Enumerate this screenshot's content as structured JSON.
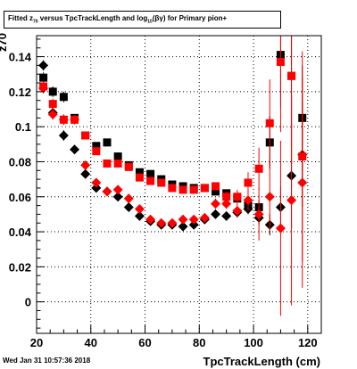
{
  "title": {
    "pre": "Fitted  z",
    "sub1": "70",
    "mid": " versus TpcTrackLength and log",
    "sub2": "10",
    "post": "(βγ) for Primary pion+"
  },
  "timestamp": "Wed Jan 31 10:57:36 2018",
  "chart_data": {
    "type": "scatter",
    "title": "Fitted z70 versus TpcTrackLength and log10(βγ) for Primary pion+",
    "xlabel": "TpcTrackLength (cm)",
    "ylabel": "z70",
    "xlim": [
      20,
      125
    ],
    "ylim": [
      -0.018,
      0.152
    ],
    "xticks": [
      20,
      40,
      60,
      80,
      100,
      120
    ],
    "yticks": [
      0,
      0.02,
      0.04,
      0.06,
      0.08,
      0.1,
      0.12,
      0.14
    ],
    "ytick_labels": [
      "0",
      "0.02",
      "0.04",
      "0.06",
      "0.08",
      "0.1",
      "0.12",
      "0.14"
    ],
    "grid": true,
    "colors": {
      "black": "#000000",
      "red": "#ff0000"
    },
    "series": [
      {
        "marker": "square",
        "color": "#000000",
        "x": [
          22.5,
          26,
          30,
          34,
          38,
          42,
          46,
          50,
          54,
          58,
          62,
          66,
          70,
          74,
          78,
          82,
          86,
          90,
          94,
          98,
          102,
          106,
          110,
          114,
          118
        ],
        "y": [
          0.128,
          0.12,
          0.117,
          0.105,
          0.095,
          0.089,
          0.091,
          0.083,
          0.078,
          0.074,
          0.073,
          0.07,
          0.067,
          0.066,
          0.065,
          0.065,
          0.063,
          0.062,
          0.059,
          0.055,
          0.054,
          0.091,
          0.141,
          0.129,
          0.105
        ],
        "err": [
          0.003,
          0.003,
          0.003,
          0.002,
          0.002,
          0.002,
          0.002,
          0.002,
          0.002,
          0.002,
          0.002,
          0.002,
          0.002,
          0.002,
          0.002,
          0.002,
          0.002,
          0.002,
          0.002,
          0.003,
          0.004,
          0.015,
          0.03,
          0.03,
          0.03
        ]
      },
      {
        "marker": "diamond",
        "color": "#000000",
        "x": [
          22.5,
          26,
          30,
          34,
          38,
          42,
          46,
          50,
          54,
          58,
          62,
          66,
          70,
          74,
          78,
          82,
          86,
          90,
          94,
          98,
          102,
          106,
          110,
          114,
          118
        ],
        "y": [
          0.135,
          0.108,
          0.095,
          0.087,
          0.073,
          0.065,
          0.063,
          0.06,
          0.054,
          0.049,
          0.046,
          0.044,
          0.044,
          0.043,
          0.044,
          0.047,
          0.05,
          0.049,
          0.051,
          0.053,
          0.048,
          0.044,
          0.054,
          0.072,
          0.084
        ],
        "err": [
          0.003,
          0.003,
          0.003,
          0.002,
          0.002,
          0.002,
          0.002,
          0.002,
          0.002,
          0.002,
          0.002,
          0.002,
          0.002,
          0.002,
          0.002,
          0.002,
          0.002,
          0.002,
          0.002,
          0.003,
          0.004,
          0.006,
          0.012,
          0.03,
          0.03
        ]
      },
      {
        "marker": "square",
        "color": "#ff0000",
        "x": [
          22.5,
          26,
          30,
          34,
          38,
          42,
          46,
          50,
          54,
          58,
          62,
          66,
          70,
          74,
          78,
          82,
          86,
          90,
          94,
          98,
          102,
          106,
          110,
          114,
          118
        ],
        "y": [
          0.123,
          0.113,
          0.104,
          0.104,
          0.095,
          0.086,
          0.079,
          0.079,
          0.077,
          0.071,
          0.069,
          0.068,
          0.065,
          0.064,
          0.064,
          0.065,
          0.066,
          0.06,
          0.06,
          0.068,
          0.076,
          0.102,
          0.137,
          0.129,
          0.083
        ],
        "err": [
          0.003,
          0.003,
          0.003,
          0.002,
          0.002,
          0.002,
          0.002,
          0.002,
          0.002,
          0.002,
          0.002,
          0.002,
          0.002,
          0.002,
          0.002,
          0.002,
          0.002,
          0.003,
          0.004,
          0.006,
          0.012,
          0.025,
          0.04,
          0.05,
          0.06
        ]
      },
      {
        "marker": "diamond",
        "color": "#ff0000",
        "x": [
          22.5,
          26,
          30,
          34,
          38,
          42,
          46,
          50,
          54,
          58,
          62,
          66,
          70,
          74,
          78,
          82,
          86,
          90,
          94,
          98,
          102,
          106,
          110,
          114,
          118
        ],
        "y": [
          0.122,
          0.107,
          0.104,
          0.104,
          0.078,
          0.068,
          0.063,
          0.064,
          0.059,
          0.053,
          0.047,
          0.045,
          0.045,
          0.047,
          0.047,
          0.048,
          0.056,
          0.056,
          0.052,
          0.058,
          0.05,
          0.06,
          0.042,
          0.058,
          0.068
        ],
        "err": [
          0.003,
          0.003,
          0.003,
          0.002,
          0.002,
          0.002,
          0.002,
          0.002,
          0.002,
          0.002,
          0.002,
          0.002,
          0.002,
          0.002,
          0.002,
          0.002,
          0.003,
          0.003,
          0.004,
          0.006,
          0.015,
          0.02,
          0.05,
          0.06,
          0.06
        ]
      }
    ]
  }
}
